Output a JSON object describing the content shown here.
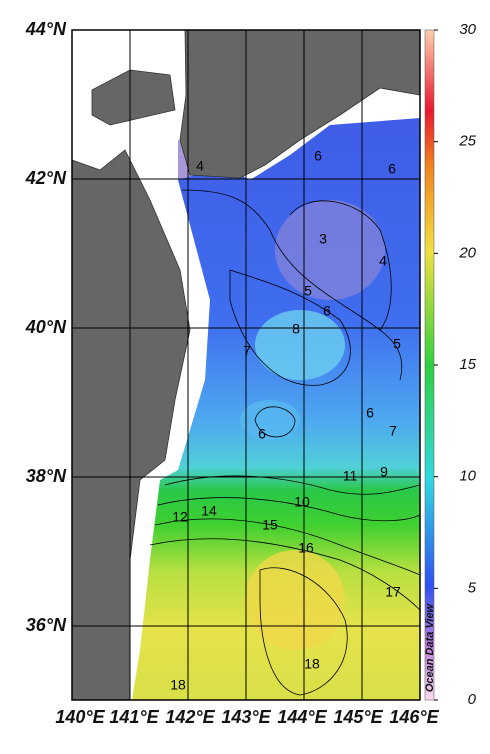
{
  "map": {
    "lat_labels": [
      "44°N",
      "42°N",
      "40°N",
      "38°N",
      "36°N"
    ],
    "lon_labels": [
      "140°E",
      "141°E",
      "142°E",
      "143°E",
      "144°E",
      "145°E",
      "146°E"
    ],
    "colorbar": {
      "lim": [
        0,
        30
      ],
      "ticks": [
        0,
        5,
        10,
        15,
        20,
        25,
        30
      ]
    },
    "contour_labels": [
      4,
      6,
      6,
      3,
      4,
      5,
      6,
      8,
      7,
      5,
      6,
      6,
      7,
      9,
      11,
      10,
      12,
      14,
      15,
      16,
      17,
      18,
      18
    ],
    "watermark": "Ocean Data View"
  }
}
